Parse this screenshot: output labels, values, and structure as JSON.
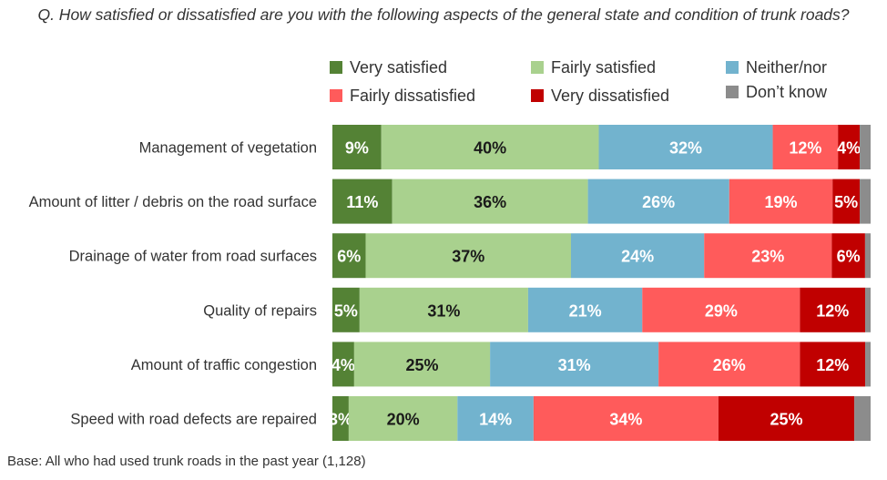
{
  "question": "Q. How satisfied or dissatisfied are you with the following aspects of the general state and condition of trunk roads?",
  "base_note": "Base: All who had used trunk roads in the past year (1,128)",
  "chart_data": {
    "type": "bar",
    "orientation": "horizontal",
    "stacked": true,
    "categories": [
      "Management of vegetation",
      "Amount of litter / debris on the road surface",
      "Drainage of water from road surfaces",
      "Quality of repairs",
      "Amount of traffic congestion",
      "Speed with road defects are repaired"
    ],
    "series": [
      {
        "name": "Very satisfied",
        "color": "#548235",
        "label_color": "#ffffff",
        "values": [
          9,
          11,
          6,
          5,
          4,
          3
        ]
      },
      {
        "name": "Fairly satisfied",
        "color": "#a9d18e",
        "label_color": "#1a1a1a",
        "values": [
          40,
          36,
          37,
          31,
          25,
          20
        ]
      },
      {
        "name": "Neither/nor",
        "color": "#72b3ce",
        "label_color": "#ffffff",
        "values": [
          32,
          26,
          24,
          21,
          31,
          14
        ]
      },
      {
        "name": "Fairly dissatisfied",
        "color": "#ff5b5b",
        "label_color": "#ffffff",
        "values": [
          12,
          19,
          23,
          29,
          26,
          34
        ]
      },
      {
        "name": "Very dissatisfied",
        "color": "#c00000",
        "label_color": "#ffffff",
        "values": [
          4,
          5,
          6,
          12,
          12,
          25
        ]
      },
      {
        "name": "Don’t know",
        "color": "#8c8c8c",
        "label_color": "#ffffff",
        "values": [
          2,
          2,
          1,
          1,
          1,
          3
        ]
      }
    ],
    "data_labels": [
      [
        "9%",
        "40%",
        "32%",
        "12%",
        "4%",
        ""
      ],
      [
        "11%",
        "36%",
        "26%",
        "19%",
        "5%",
        ""
      ],
      [
        "6%",
        "37%",
        "24%",
        "23%",
        "6%",
        ""
      ],
      [
        "5%",
        "31%",
        "21%",
        "29%",
        "12%",
        ""
      ],
      [
        "4%",
        "25%",
        "31%",
        "26%",
        "12%",
        ""
      ],
      [
        "3%",
        "20%",
        "14%",
        "34%",
        "25%",
        ""
      ]
    ],
    "xlim": [
      0,
      100
    ],
    "unit": "%",
    "legend": {
      "position": "top"
    }
  }
}
